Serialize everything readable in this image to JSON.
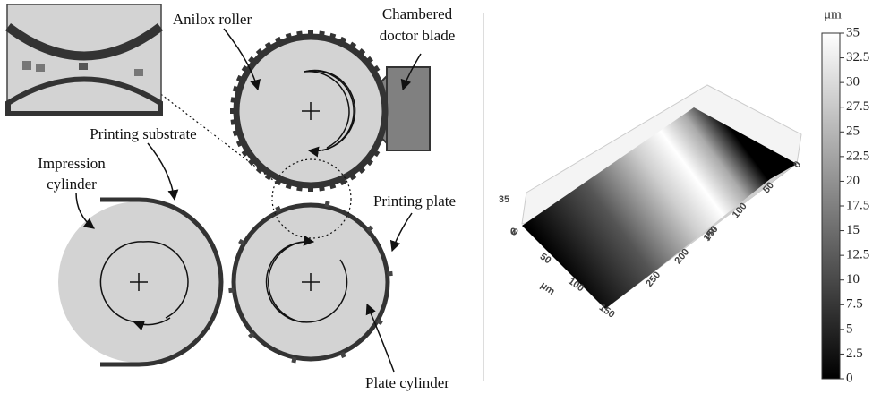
{
  "diagram": {
    "labels": {
      "anilox_roller": "Anilox roller",
      "doctor_blade": [
        "Chambered",
        "doctor blade"
      ],
      "printing_substrate": "Printing substrate",
      "impression_cylinder": [
        "Impression",
        "cylinder"
      ],
      "printing_plate": "Printing plate",
      "plate_cylinder": "Plate cylinder"
    }
  },
  "surface_plot": {
    "x_axis": {
      "label": "μm",
      "lim": [
        0,
        150
      ],
      "ticks": [
        0,
        50,
        100,
        150
      ]
    },
    "y_axis": {
      "label": "μm",
      "lim": [
        0,
        250
      ],
      "ticks": [
        0,
        50,
        100,
        150,
        200,
        250
      ]
    },
    "z_axis": {
      "lim": [
        0,
        35
      ],
      "ticks": [
        0,
        35
      ]
    },
    "colorbar": {
      "label": "μm",
      "lim": [
        0,
        35
      ],
      "ticks": [
        0,
        2.5,
        5,
        7.5,
        10,
        12.5,
        15,
        17.5,
        20,
        22.5,
        25,
        27.5,
        30,
        32.5,
        35
      ]
    }
  }
}
